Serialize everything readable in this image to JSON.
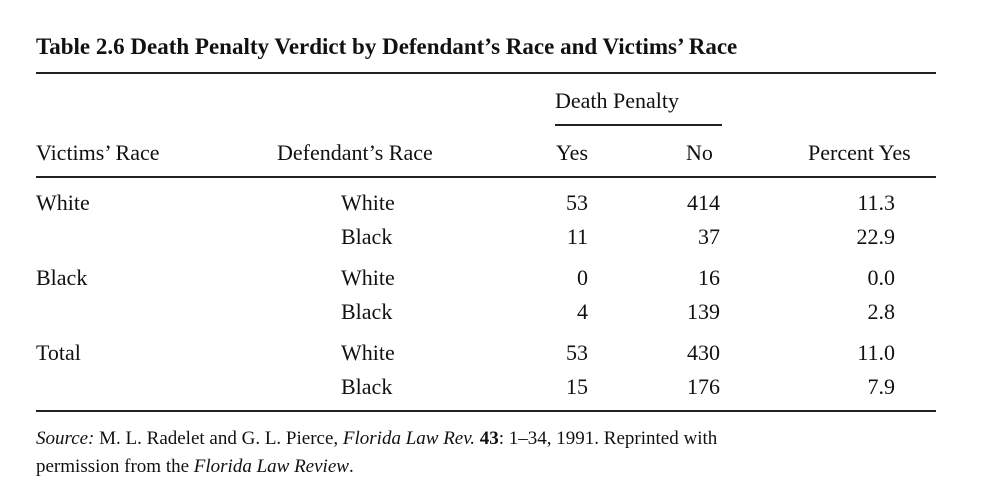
{
  "table": {
    "title": "Table 2.6   Death Penalty Verdict by Defendant’s Race and Victims’ Race",
    "spanner": "Death Penalty",
    "columns": {
      "victims_race": "Victims’ Race",
      "defendants_race": "Defendant’s Race",
      "yes": "Yes",
      "no": "No",
      "percent_yes": "Percent Yes"
    },
    "groups": [
      {
        "victims_race": "White",
        "rows": [
          {
            "defendant": "White",
            "yes": "53",
            "no": "414",
            "pct": "11.3"
          },
          {
            "defendant": "Black",
            "yes": "11",
            "no": "37",
            "pct": "22.9"
          }
        ]
      },
      {
        "victims_race": "Black",
        "rows": [
          {
            "defendant": "White",
            "yes": "0",
            "no": "16",
            "pct": "0.0"
          },
          {
            "defendant": "Black",
            "yes": "4",
            "no": "139",
            "pct": "2.8"
          }
        ]
      },
      {
        "victims_race": "Total",
        "rows": [
          {
            "defendant": "White",
            "yes": "53",
            "no": "430",
            "pct": "11.0"
          },
          {
            "defendant": "Black",
            "yes": "15",
            "no": "176",
            "pct": "7.9"
          }
        ]
      }
    ]
  },
  "source": {
    "label": "Source:",
    "authors": "M. L. Radelet and G. L. Pierce,",
    "journal": "Florida Law Rev.",
    "volume": "43",
    "rest_line1": ": 1–34, 1991. Reprinted with",
    "line2_prefix": "permission from the",
    "journal_full": "Florida Law Review",
    "line2_suffix": "."
  }
}
